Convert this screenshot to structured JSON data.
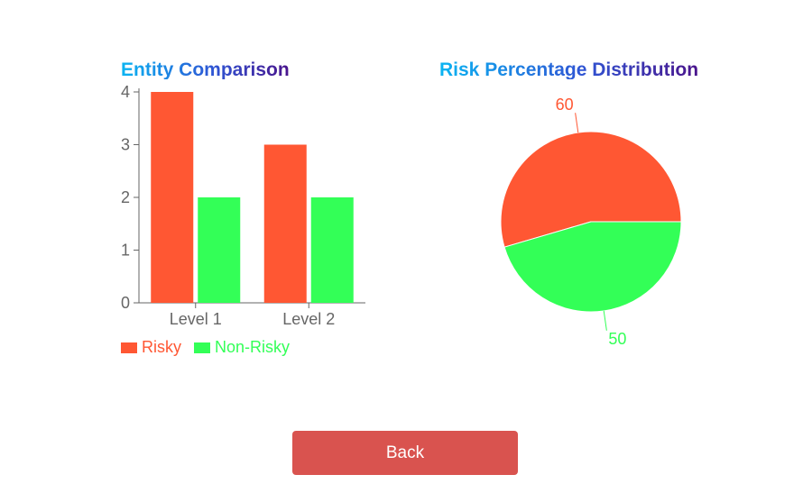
{
  "bar_panel": {
    "title": "Entity Comparison"
  },
  "pie_panel": {
    "title": "Risk Percentage Distribution"
  },
  "back_button": {
    "label": "Back"
  },
  "colors": {
    "risky": "#ff5733",
    "non_risky": "#33ff57",
    "button": "#d9534f"
  },
  "chart_data": [
    {
      "type": "bar",
      "title": "Entity Comparison",
      "categories": [
        "Level 1",
        "Level 2"
      ],
      "series": [
        {
          "name": "Risky",
          "values": [
            4,
            3
          ]
        },
        {
          "name": "Non-Risky",
          "values": [
            2,
            2
          ]
        }
      ],
      "ylim": [
        0,
        4
      ],
      "yticks": [
        "0",
        "1",
        "2",
        "3",
        "4"
      ],
      "legend": "bottom-left",
      "grid": false
    },
    {
      "type": "pie",
      "title": "Risk Percentage Distribution",
      "slices": [
        {
          "name": "Risky",
          "value": 60,
          "label": "60"
        },
        {
          "name": "Non-Risky",
          "value": 50,
          "label": "50"
        }
      ]
    }
  ]
}
